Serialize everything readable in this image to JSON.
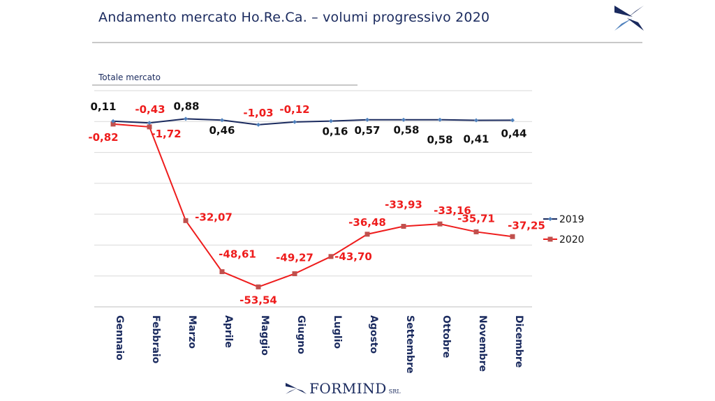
{
  "header": {
    "title": "Andamento mercato Ho.Re.Ca. – volumi progressivo 2020"
  },
  "footer": {
    "brand": "FORMIND",
    "brand_suffix": "SRL"
  },
  "colors": {
    "series_2019": "#1a2a5e",
    "series_2019_marker": "#4f81bd",
    "series_2020": "#ee1c1c",
    "series_2020_marker": "#c0504d",
    "label_2019": "#111111",
    "label_2020": "#ee1c1c",
    "title": "#1a2a5e",
    "grid": "#d9d9d9"
  },
  "chart_data": {
    "type": "line",
    "title": "Totale mercato",
    "categories": [
      "Gennaio",
      "Febbraio",
      "Marzo",
      "Aprile",
      "Maggio",
      "Giugno",
      "Luglio",
      "Agosto",
      "Settembre",
      "Ottobre",
      "Novembre",
      "Dicembre"
    ],
    "series": [
      {
        "name": "2019",
        "values": [
          0.11,
          -0.43,
          0.88,
          0.46,
          -1.03,
          -0.12,
          0.16,
          0.57,
          0.58,
          0.58,
          0.41,
          0.44
        ],
        "labels": [
          "0,11",
          "-0,43",
          "0,88",
          "0,46",
          "-1,03",
          "-0,12",
          "0,16",
          "0,57",
          "0,58",
          "0,58",
          "0,41",
          "0,44"
        ]
      },
      {
        "name": "2020",
        "values": [
          -0.82,
          -1.72,
          -32.07,
          -48.61,
          -53.54,
          -49.27,
          -43.7,
          -36.48,
          -33.93,
          -33.16,
          -35.71,
          -37.25
        ],
        "labels": [
          "-0,82",
          "-1,72",
          "-32,07",
          "-48,61",
          "-53,54",
          "-49,27",
          "-43,70",
          "-36,48",
          "-33,93",
          "-33,16",
          "-35,71",
          "-37,25"
        ]
      }
    ],
    "ylim": [
      -60,
      10
    ],
    "grid": true,
    "legend": "right"
  }
}
